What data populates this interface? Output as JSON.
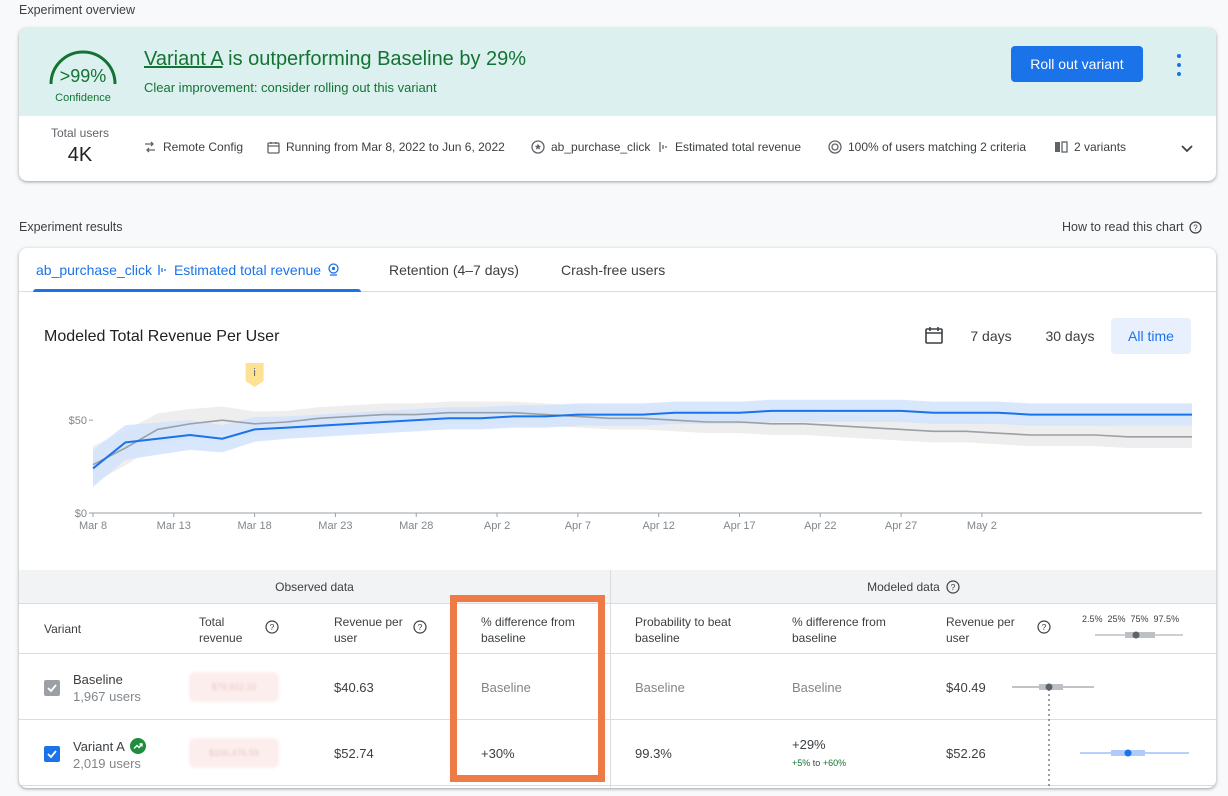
{
  "page": {
    "overview_label": "Experiment overview",
    "results_label": "Experiment results",
    "how_to_read": "How to read this chart"
  },
  "overview": {
    "confidence_value": ">99%",
    "confidence_label": "Confidence",
    "headline_variant": "Variant A",
    "headline_rest": " is outperforming Baseline by 29%",
    "subline": "Clear improvement: consider rolling out this variant",
    "rollout_button": "Roll out variant",
    "total_users_label": "Total users",
    "total_users_value": "4K",
    "meta": {
      "remote_config": "Remote Config",
      "running": "Running from Mar 8, 2022 to Jun 6, 2022",
      "goal": "ab_purchase_click",
      "metric": "Estimated total revenue",
      "targeting": "100% of users matching 2 criteria",
      "variants": "2 variants"
    }
  },
  "tabs": {
    "goal": "ab_purchase_click",
    "metric": "Estimated total revenue",
    "retention": "Retention (4–7 days)",
    "crash_free": "Crash-free users"
  },
  "chart": {
    "title": "Modeled Total Revenue Per User",
    "ranges": [
      "7 days",
      "30 days",
      "All time"
    ],
    "annotation": "i"
  },
  "chart_data": {
    "type": "line",
    "title": "Modeled Total Revenue Per User",
    "x": [
      "Mar 8",
      "Mar 10",
      "Mar 12",
      "Mar 14",
      "Mar 16",
      "Mar 18",
      "Mar 20",
      "Mar 22",
      "Mar 24",
      "Mar 26",
      "Mar 28",
      "Mar 30",
      "Apr 1",
      "Apr 3",
      "Apr 5",
      "Apr 7",
      "Apr 9",
      "Apr 11",
      "Apr 13",
      "Apr 15",
      "Apr 17",
      "Apr 19",
      "Apr 21",
      "Apr 23",
      "Apr 25",
      "Apr 27",
      "Apr 29",
      "May 1",
      "May 3",
      "May 5",
      "May 7",
      "May 9",
      "May 11",
      "May 13",
      "May 15"
    ],
    "x_ticks": [
      "Mar 8",
      "Mar 13",
      "Mar 18",
      "Mar 23",
      "Mar 28",
      "Apr 2",
      "Apr 7",
      "Apr 12",
      "Apr 17",
      "Apr 22",
      "Apr 27",
      "May 2"
    ],
    "y_ticks": [
      "$0",
      "$50"
    ],
    "ylim": [
      0,
      70
    ],
    "series": [
      {
        "color": "#1a73e8",
        "values": [
          24,
          38,
          40,
          42,
          40,
          45,
          46,
          47,
          48,
          49,
          50,
          51,
          51,
          52,
          52,
          53,
          53,
          53,
          54,
          54,
          54,
          55,
          55,
          55,
          55,
          55,
          54,
          54,
          54,
          53,
          53,
          53,
          53,
          53,
          53
        ],
        "band_color": "#d2e3fc"
      },
      {
        "color": "#9aa0a6",
        "values": [
          26,
          35,
          45,
          48,
          50,
          48,
          49,
          51,
          52,
          53,
          53,
          54,
          54,
          54,
          53,
          52,
          51,
          51,
          50,
          49,
          49,
          48,
          48,
          47,
          46,
          45,
          44,
          44,
          43,
          42,
          42,
          42,
          41,
          41,
          41
        ],
        "band_color": "#ececec"
      }
    ],
    "grid": false
  },
  "table": {
    "observed_header": "Observed data",
    "modeled_header": "Modeled data",
    "columns": {
      "variant": "Variant",
      "total_revenue": "Total revenue",
      "revenue_per_user_obs": "Revenue per user",
      "pct_diff_obs": "% difference from baseline",
      "prob_beat": "Probability to beat baseline",
      "pct_diff_mod": "% difference from baseline",
      "revenue_per_user_mod": "Revenue per user",
      "percentiles": [
        "2.5%",
        "25%",
        "75%",
        "97.5%"
      ]
    },
    "rows": [
      {
        "name": "Baseline",
        "users": "1,967 users",
        "total_revenue": "$79,922.32",
        "revenue_per_user": "$40.63",
        "pct_diff_obs": "Baseline",
        "prob_beat": "Baseline",
        "pct_diff_mod": "Baseline",
        "pct_range_low": "",
        "pct_range_to": "",
        "pct_range_high": "",
        "revenue_per_user_mod": "$40.49"
      },
      {
        "name": "Variant A",
        "users": "2,019 users",
        "total_revenue": "$106,476.59",
        "revenue_per_user": "$52.74",
        "pct_diff_obs": "+30%",
        "prob_beat": "99.3%",
        "pct_diff_mod": "+29%",
        "pct_range_low": "+5%",
        "pct_range_to": "to",
        "pct_range_high": "+60%",
        "revenue_per_user_mod": "$52.26"
      }
    ]
  },
  "colors": {
    "accent": "#1a73e8",
    "success": "#137333",
    "banner": "#dcf1ef",
    "highlight": "#ee7b45"
  }
}
